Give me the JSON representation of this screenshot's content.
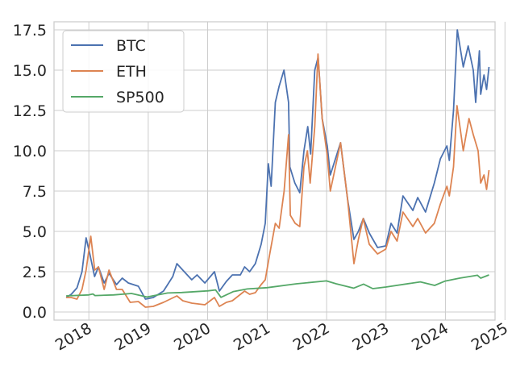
{
  "chart_data": {
    "type": "line",
    "title": "",
    "xlabel": "",
    "ylabel": "",
    "xlim": [
      "2017-06-01",
      "2024-11-01"
    ],
    "ylim": [
      -0.5,
      18.0
    ],
    "x_ticks": [
      "2018",
      "2019",
      "2020",
      "2021",
      "2022",
      "2023",
      "2024",
      "2025"
    ],
    "y_ticks": [
      "0.0",
      "2.5",
      "5.0",
      "7.5",
      "10.0",
      "12.5",
      "15.0",
      "17.5"
    ],
    "grid": true,
    "legend_position": "top-left",
    "series": [
      {
        "name": "BTC",
        "color": "#4c72b0",
        "points": [
          [
            "2017-08-15",
            0.9
          ],
          [
            "2017-09-15",
            1.1
          ],
          [
            "2017-10-20",
            1.5
          ],
          [
            "2017-11-20",
            2.5
          ],
          [
            "2017-12-15",
            4.6
          ],
          [
            "2018-01-05",
            3.7
          ],
          [
            "2018-02-05",
            2.2
          ],
          [
            "2018-03-01",
            2.8
          ],
          [
            "2018-04-05",
            1.8
          ],
          [
            "2018-05-05",
            2.4
          ],
          [
            "2018-06-20",
            1.7
          ],
          [
            "2018-07-25",
            2.1
          ],
          [
            "2018-09-01",
            1.8
          ],
          [
            "2018-11-01",
            1.6
          ],
          [
            "2018-12-15",
            0.8
          ],
          [
            "2019-02-01",
            0.9
          ],
          [
            "2019-04-05",
            1.3
          ],
          [
            "2019-06-01",
            2.2
          ],
          [
            "2019-06-26",
            3.0
          ],
          [
            "2019-08-01",
            2.6
          ],
          [
            "2019-09-25",
            2.0
          ],
          [
            "2019-10-28",
            2.3
          ],
          [
            "2019-12-15",
            1.8
          ],
          [
            "2020-02-12",
            2.5
          ],
          [
            "2020-03-13",
            1.3
          ],
          [
            "2020-04-25",
            1.9
          ],
          [
            "2020-06-01",
            2.3
          ],
          [
            "2020-07-20",
            2.3
          ],
          [
            "2020-08-15",
            2.8
          ],
          [
            "2020-09-15",
            2.5
          ],
          [
            "2020-10-20",
            3.0
          ],
          [
            "2020-11-25",
            4.2
          ],
          [
            "2020-12-20",
            5.5
          ],
          [
            "2021-01-08",
            9.2
          ],
          [
            "2021-01-25",
            7.8
          ],
          [
            "2021-02-20",
            13.0
          ],
          [
            "2021-03-15",
            14.0
          ],
          [
            "2021-04-14",
            15.0
          ],
          [
            "2021-05-12",
            13.0
          ],
          [
            "2021-05-20",
            9.0
          ],
          [
            "2021-06-20",
            8.0
          ],
          [
            "2021-07-20",
            7.4
          ],
          [
            "2021-08-15",
            10.0
          ],
          [
            "2021-09-07",
            11.5
          ],
          [
            "2021-09-25",
            9.8
          ],
          [
            "2021-10-20",
            15.0
          ],
          [
            "2021-11-10",
            15.8
          ],
          [
            "2021-12-05",
            12.0
          ],
          [
            "2022-01-05",
            10.3
          ],
          [
            "2022-01-24",
            8.5
          ],
          [
            "2022-03-28",
            10.5
          ],
          [
            "2022-05-10",
            7.0
          ],
          [
            "2022-06-18",
            4.5
          ],
          [
            "2022-07-15",
            5.0
          ],
          [
            "2022-08-15",
            5.8
          ],
          [
            "2022-09-20",
            4.9
          ],
          [
            "2022-11-10",
            4.0
          ],
          [
            "2022-12-30",
            4.1
          ],
          [
            "2023-02-01",
            5.5
          ],
          [
            "2023-03-10",
            4.9
          ],
          [
            "2023-04-15",
            7.2
          ],
          [
            "2023-06-15",
            6.3
          ],
          [
            "2023-07-15",
            7.1
          ],
          [
            "2023-09-01",
            6.2
          ],
          [
            "2023-10-25",
            8.0
          ],
          [
            "2023-12-01",
            9.5
          ],
          [
            "2024-01-10",
            10.3
          ],
          [
            "2024-01-25",
            9.4
          ],
          [
            "2024-02-20",
            12.5
          ],
          [
            "2024-03-14",
            17.5
          ],
          [
            "2024-04-20",
            15.2
          ],
          [
            "2024-05-20",
            16.5
          ],
          [
            "2024-06-20",
            15.0
          ],
          [
            "2024-07-05",
            13.0
          ],
          [
            "2024-07-28",
            16.2
          ],
          [
            "2024-08-05",
            13.5
          ],
          [
            "2024-08-25",
            14.7
          ],
          [
            "2024-09-10",
            13.8
          ],
          [
            "2024-09-25",
            15.2
          ]
        ]
      },
      {
        "name": "ETH",
        "color": "#dd8452",
        "points": [
          [
            "2017-08-15",
            0.9
          ],
          [
            "2017-09-15",
            0.9
          ],
          [
            "2017-10-20",
            0.8
          ],
          [
            "2017-11-20",
            1.4
          ],
          [
            "2017-12-15",
            2.6
          ],
          [
            "2018-01-13",
            4.7
          ],
          [
            "2018-02-06",
            2.6
          ],
          [
            "2018-03-01",
            2.8
          ],
          [
            "2018-04-05",
            1.4
          ],
          [
            "2018-05-05",
            2.6
          ],
          [
            "2018-06-20",
            1.4
          ],
          [
            "2018-07-25",
            1.4
          ],
          [
            "2018-09-12",
            0.6
          ],
          [
            "2018-11-01",
            0.65
          ],
          [
            "2018-12-15",
            0.3
          ],
          [
            "2019-02-01",
            0.35
          ],
          [
            "2019-04-05",
            0.6
          ],
          [
            "2019-06-26",
            1.0
          ],
          [
            "2019-08-01",
            0.7
          ],
          [
            "2019-09-25",
            0.55
          ],
          [
            "2019-12-15",
            0.45
          ],
          [
            "2020-02-12",
            0.9
          ],
          [
            "2020-03-13",
            0.35
          ],
          [
            "2020-04-25",
            0.6
          ],
          [
            "2020-06-01",
            0.7
          ],
          [
            "2020-08-15",
            1.3
          ],
          [
            "2020-09-15",
            1.1
          ],
          [
            "2020-10-20",
            1.2
          ],
          [
            "2020-11-25",
            1.7
          ],
          [
            "2020-12-20",
            2.0
          ],
          [
            "2021-01-15",
            3.5
          ],
          [
            "2021-02-20",
            5.5
          ],
          [
            "2021-03-15",
            5.2
          ],
          [
            "2021-04-15",
            7.5
          ],
          [
            "2021-05-12",
            11.0
          ],
          [
            "2021-05-23",
            6.0
          ],
          [
            "2021-06-22",
            5.5
          ],
          [
            "2021-07-20",
            5.3
          ],
          [
            "2021-08-15",
            9.0
          ],
          [
            "2021-09-05",
            10.0
          ],
          [
            "2021-09-22",
            8.0
          ],
          [
            "2021-10-20",
            11.5
          ],
          [
            "2021-11-09",
            16.0
          ],
          [
            "2021-12-05",
            12.0
          ],
          [
            "2022-01-05",
            9.7
          ],
          [
            "2022-01-24",
            7.5
          ],
          [
            "2022-03-28",
            10.5
          ],
          [
            "2022-05-10",
            7.0
          ],
          [
            "2022-06-18",
            3.0
          ],
          [
            "2022-07-15",
            4.5
          ],
          [
            "2022-08-14",
            5.8
          ],
          [
            "2022-09-20",
            4.2
          ],
          [
            "2022-11-10",
            3.6
          ],
          [
            "2022-12-30",
            3.9
          ],
          [
            "2023-02-01",
            5.0
          ],
          [
            "2023-03-10",
            4.4
          ],
          [
            "2023-04-15",
            6.2
          ],
          [
            "2023-06-15",
            5.3
          ],
          [
            "2023-07-15",
            5.8
          ],
          [
            "2023-09-01",
            4.9
          ],
          [
            "2023-10-25",
            5.5
          ],
          [
            "2023-12-01",
            6.7
          ],
          [
            "2024-01-10",
            7.8
          ],
          [
            "2024-01-25",
            7.2
          ],
          [
            "2024-02-20",
            9.0
          ],
          [
            "2024-03-12",
            12.8
          ],
          [
            "2024-04-20",
            10.0
          ],
          [
            "2024-05-25",
            12.0
          ],
          [
            "2024-06-20",
            11.0
          ],
          [
            "2024-07-20",
            10.0
          ],
          [
            "2024-08-05",
            8.0
          ],
          [
            "2024-08-25",
            8.5
          ],
          [
            "2024-09-10",
            7.6
          ],
          [
            "2024-09-25",
            8.8
          ]
        ]
      },
      {
        "name": "SP500",
        "color": "#55a868",
        "points": [
          [
            "2017-08-15",
            1.0
          ],
          [
            "2017-12-31",
            1.06
          ],
          [
            "2018-01-26",
            1.12
          ],
          [
            "2018-02-08",
            1.02
          ],
          [
            "2018-06-01",
            1.06
          ],
          [
            "2018-09-20",
            1.15
          ],
          [
            "2018-12-24",
            0.93
          ],
          [
            "2019-04-30",
            1.18
          ],
          [
            "2019-07-26",
            1.21
          ],
          [
            "2019-12-31",
            1.31
          ],
          [
            "2020-02-19",
            1.37
          ],
          [
            "2020-03-23",
            0.91
          ],
          [
            "2020-06-08",
            1.27
          ],
          [
            "2020-08-31",
            1.43
          ],
          [
            "2020-12-31",
            1.51
          ],
          [
            "2021-06-30",
            1.75
          ],
          [
            "2021-12-31",
            1.93
          ],
          [
            "2022-03-01",
            1.75
          ],
          [
            "2022-06-16",
            1.48
          ],
          [
            "2022-08-16",
            1.73
          ],
          [
            "2022-10-12",
            1.45
          ],
          [
            "2022-12-31",
            1.55
          ],
          [
            "2023-07-31",
            1.87
          ],
          [
            "2023-10-27",
            1.65
          ],
          [
            "2023-12-31",
            1.92
          ],
          [
            "2024-03-28",
            2.1
          ],
          [
            "2024-07-16",
            2.28
          ],
          [
            "2024-08-05",
            2.1
          ],
          [
            "2024-09-25",
            2.3
          ]
        ]
      }
    ]
  }
}
